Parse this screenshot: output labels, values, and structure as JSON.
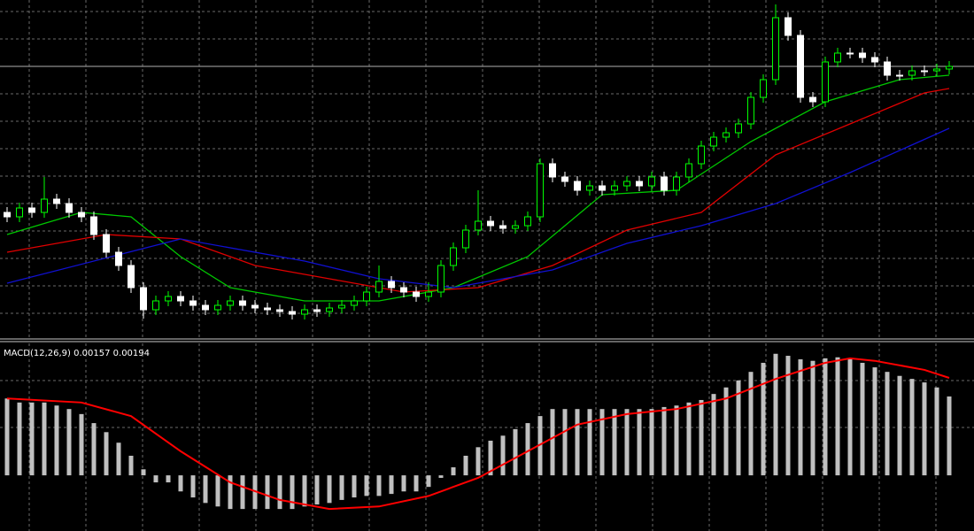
{
  "chart_data": [
    {
      "type": "candlestick",
      "ylim": [
        0,
        380
      ],
      "open": [
        140,
        135,
        145,
        140,
        155,
        150,
        140,
        135,
        115,
        95,
        80,
        55,
        30,
        40,
        45,
        40,
        35,
        30,
        35,
        40,
        35,
        32,
        30,
        28,
        25,
        30,
        28,
        32,
        35,
        40,
        50,
        62,
        55,
        50,
        45,
        50,
        80,
        100,
        120,
        130,
        125,
        122,
        125,
        135,
        195,
        180,
        175,
        165,
        170,
        165,
        170,
        175,
        170,
        180,
        165,
        180,
        195,
        215,
        225,
        230,
        240,
        270,
        290,
        360,
        340,
        270,
        265,
        310,
        320,
        320,
        315,
        310,
        295,
        295,
        300,
        300,
        302
      ],
      "high": [
        146,
        151,
        151,
        180,
        161,
        156,
        146,
        141,
        121,
        101,
        86,
        61,
        46,
        51,
        51,
        46,
        41,
        41,
        46,
        46,
        41,
        38,
        36,
        34,
        36,
        36,
        38,
        41,
        46,
        56,
        80,
        68,
        61,
        56,
        61,
        86,
        106,
        126,
        165,
        136,
        131,
        131,
        141,
        201,
        201,
        186,
        181,
        176,
        176,
        176,
        181,
        181,
        186,
        186,
        186,
        201,
        221,
        231,
        236,
        246,
        276,
        296,
        375,
        366,
        346,
        276,
        316,
        326,
        326,
        326,
        321,
        316,
        301,
        306,
        306,
        308,
        311
      ],
      "low": [
        129,
        129,
        134,
        134,
        144,
        134,
        129,
        109,
        89,
        74,
        49,
        20,
        24,
        34,
        34,
        29,
        24,
        24,
        29,
        29,
        26,
        24,
        22,
        19,
        19,
        22,
        22,
        26,
        29,
        34,
        44,
        49,
        44,
        39,
        39,
        44,
        74,
        94,
        114,
        119,
        116,
        116,
        119,
        129,
        174,
        169,
        159,
        159,
        159,
        159,
        164,
        164,
        164,
        159,
        159,
        174,
        189,
        209,
        219,
        224,
        234,
        264,
        284,
        334,
        264,
        259,
        259,
        304,
        314,
        309,
        304,
        289,
        289,
        289,
        294,
        294,
        296
      ],
      "close": [
        135,
        145,
        140,
        155,
        150,
        140,
        135,
        115,
        95,
        80,
        55,
        30,
        40,
        45,
        40,
        35,
        30,
        35,
        40,
        35,
        32,
        30,
        28,
        25,
        30,
        28,
        32,
        35,
        40,
        50,
        62,
        55,
        50,
        45,
        50,
        80,
        100,
        120,
        130,
        125,
        122,
        125,
        135,
        195,
        180,
        175,
        165,
        170,
        165,
        170,
        175,
        170,
        180,
        165,
        180,
        195,
        215,
        225,
        230,
        240,
        270,
        290,
        360,
        340,
        270,
        265,
        310,
        320,
        320,
        315,
        310,
        295,
        295,
        300,
        300,
        302,
        305
      ],
      "up_color": "#00ff00",
      "down_color": "#ffffff",
      "price_line": 305,
      "series": [
        {
          "color": "#00c800",
          "x": [
            0,
            6,
            10,
            14,
            18,
            24,
            30,
            36,
            42,
            48,
            54,
            60,
            66,
            72,
            76
          ],
          "values": [
            115,
            140,
            135,
            90,
            55,
            40,
            40,
            55,
            90,
            160,
            165,
            220,
            265,
            290,
            295
          ]
        },
        {
          "color": "#e00000",
          "x": [
            0,
            8,
            14,
            20,
            26,
            32,
            38,
            44,
            50,
            56,
            62,
            68,
            74,
            76
          ],
          "values": [
            95,
            115,
            110,
            80,
            65,
            50,
            55,
            80,
            120,
            140,
            205,
            240,
            275,
            280
          ]
        },
        {
          "color": "#1010d0",
          "x": [
            0,
            14,
            24,
            30,
            36,
            44,
            50,
            56,
            62,
            68,
            76
          ],
          "values": [
            60,
            110,
            85,
            65,
            55,
            75,
            105,
            125,
            150,
            185,
            235
          ]
        }
      ]
    },
    {
      "type": "macd",
      "title": "MACD(12,26,9) 0.00157 0.00194",
      "ylim": [
        -0.00102,
        0.00268
      ],
      "histogram": {
        "color": "#c0c0c0",
        "values": [
          0.00153,
          0.00145,
          0.00145,
          0.00145,
          0.00139,
          0.00132,
          0.00122,
          0.00104,
          0.00086,
          0.00065,
          0.00039,
          0.00012,
          -0.00014,
          -0.00014,
          -0.00032,
          -0.00044,
          -0.00055,
          -0.00062,
          -0.00067,
          -0.00067,
          -0.00067,
          -0.00067,
          -0.00067,
          -0.00067,
          -0.00062,
          -0.00058,
          -0.00055,
          -0.00049,
          -0.00044,
          -0.00041,
          -0.00041,
          -0.00037,
          -0.00032,
          -0.00032,
          -0.00023,
          -5e-05,
          0.00016,
          0.00039,
          0.00056,
          0.00069,
          0.00079,
          0.00092,
          0.00104,
          0.00118,
          0.00132,
          0.00132,
          0.00132,
          0.00132,
          0.00132,
          0.00132,
          0.00132,
          0.00132,
          0.00132,
          0.00136,
          0.00139,
          0.00145,
          0.0015,
          0.00162,
          0.00175,
          0.00189,
          0.00206,
          0.00224,
          0.00242,
          0.00238,
          0.00231,
          0.00228,
          0.00233,
          0.00235,
          0.00231,
          0.00224,
          0.00215,
          0.00206,
          0.00198,
          0.00192,
          0.00185,
          0.00175,
          0.00157
        ]
      },
      "signal": {
        "color": "#ff0000",
        "x": [
          0,
          6,
          10,
          14,
          18,
          22,
          26,
          30,
          34,
          38,
          42,
          46,
          50,
          54,
          58,
          62,
          66,
          68,
          70,
          74,
          76
        ],
        "values": [
          0.00153,
          0.00145,
          0.00118,
          0.00048,
          -0.00014,
          -0.00049,
          -0.00067,
          -0.00062,
          -0.00041,
          -5e-05,
          0.00048,
          0.00101,
          0.00122,
          0.00132,
          0.00153,
          0.00192,
          0.00224,
          0.00233,
          0.00228,
          0.0021,
          0.00194
        ]
      }
    }
  ]
}
